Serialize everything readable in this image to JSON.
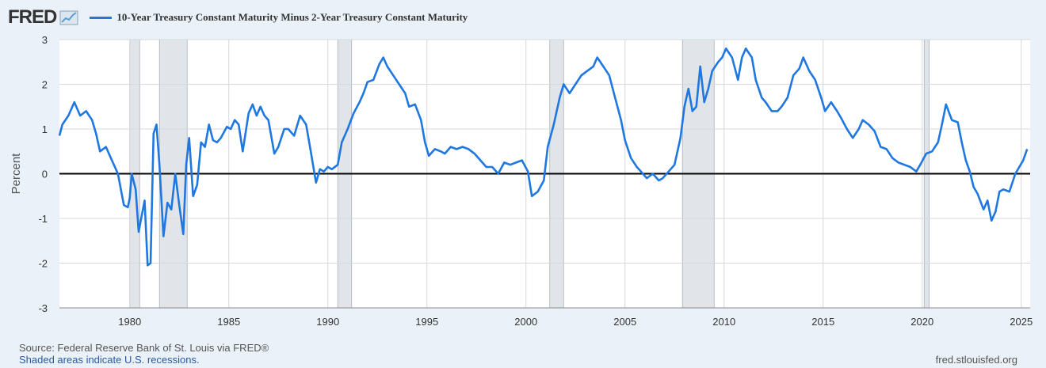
{
  "header": {
    "logo": "FRED",
    "logo_icon": "trend-chart-icon",
    "legend_label": "10-Year Treasury Constant Maturity Minus 2-Year Treasury Constant Maturity",
    "series_color": "#1f77e0"
  },
  "footer": {
    "source": "Source: Federal Reserve Bank of St. Louis via FRED®",
    "recessions_note": "Shaded areas indicate U.S. recessions.",
    "url": "fred.stlouisfed.org"
  },
  "chart_data": {
    "type": "line",
    "title": "10-Year Treasury Constant Maturity Minus 2-Year Treasury Constant Maturity",
    "xlabel": "",
    "ylabel": "Percent",
    "xlim": [
      1976.45,
      2025.45
    ],
    "ylim": [
      -3,
      3
    ],
    "xticks": [
      1980,
      1985,
      1990,
      1995,
      2000,
      2005,
      2010,
      2015,
      2020,
      2025
    ],
    "yticks": [
      -3,
      -2,
      -1,
      0,
      1,
      2,
      3
    ],
    "grid": true,
    "zero_line": true,
    "recessions": [
      [
        1980.0,
        1980.5
      ],
      [
        1981.5,
        1982.9
      ],
      [
        1990.5,
        1991.2
      ],
      [
        2001.2,
        2001.9
      ],
      [
        2007.9,
        2009.5
      ],
      [
        2020.1,
        2020.35
      ]
    ],
    "recession_color": "#e1e5ea",
    "series": [
      {
        "name": "10-Year Treasury Constant Maturity Minus 2-Year Treasury Constant Maturity",
        "color": "#1f77e0",
        "points": [
          [
            1976.45,
            0.85
          ],
          [
            1976.6,
            1.1
          ],
          [
            1976.9,
            1.3
          ],
          [
            1977.2,
            1.6
          ],
          [
            1977.5,
            1.3
          ],
          [
            1977.8,
            1.4
          ],
          [
            1978.1,
            1.2
          ],
          [
            1978.3,
            0.9
          ],
          [
            1978.5,
            0.5
          ],
          [
            1978.8,
            0.6
          ],
          [
            1979.1,
            0.3
          ],
          [
            1979.4,
            0.0
          ],
          [
            1979.7,
            -0.7
          ],
          [
            1979.9,
            -0.75
          ],
          [
            1980.0,
            -0.55
          ],
          [
            1980.1,
            0.0
          ],
          [
            1980.3,
            -0.35
          ],
          [
            1980.45,
            -1.3
          ],
          [
            1980.6,
            -0.95
          ],
          [
            1980.75,
            -0.6
          ],
          [
            1980.9,
            -2.05
          ],
          [
            1981.05,
            -2.0
          ],
          [
            1981.2,
            0.9
          ],
          [
            1981.35,
            1.1
          ],
          [
            1981.5,
            0.2
          ],
          [
            1981.7,
            -1.4
          ],
          [
            1981.9,
            -0.65
          ],
          [
            1982.1,
            -0.8
          ],
          [
            1982.3,
            0.0
          ],
          [
            1982.5,
            -0.7
          ],
          [
            1982.7,
            -1.35
          ],
          [
            1982.85,
            0.2
          ],
          [
            1983.0,
            0.8
          ],
          [
            1983.2,
            -0.5
          ],
          [
            1983.4,
            -0.25
          ],
          [
            1983.6,
            0.7
          ],
          [
            1983.8,
            0.6
          ],
          [
            1984.0,
            1.1
          ],
          [
            1984.2,
            0.75
          ],
          [
            1984.4,
            0.7
          ],
          [
            1984.6,
            0.8
          ],
          [
            1984.9,
            1.05
          ],
          [
            1985.1,
            1.0
          ],
          [
            1985.3,
            1.2
          ],
          [
            1985.5,
            1.1
          ],
          [
            1985.7,
            0.5
          ],
          [
            1986.0,
            1.35
          ],
          [
            1986.2,
            1.55
          ],
          [
            1986.4,
            1.3
          ],
          [
            1986.6,
            1.5
          ],
          [
            1986.8,
            1.3
          ],
          [
            1987.0,
            1.2
          ],
          [
            1987.3,
            0.45
          ],
          [
            1987.5,
            0.6
          ],
          [
            1987.8,
            1.0
          ],
          [
            1988.0,
            1.0
          ],
          [
            1988.3,
            0.85
          ],
          [
            1988.6,
            1.3
          ],
          [
            1988.9,
            1.1
          ],
          [
            1989.1,
            0.6
          ],
          [
            1989.4,
            -0.2
          ],
          [
            1989.6,
            0.1
          ],
          [
            1989.8,
            0.05
          ],
          [
            1990.0,
            0.15
          ],
          [
            1990.2,
            0.1
          ],
          [
            1990.5,
            0.2
          ],
          [
            1990.7,
            0.7
          ],
          [
            1991.0,
            1.0
          ],
          [
            1991.3,
            1.35
          ],
          [
            1991.6,
            1.6
          ],
          [
            1991.8,
            1.8
          ],
          [
            1992.0,
            2.05
          ],
          [
            1992.3,
            2.1
          ],
          [
            1992.6,
            2.45
          ],
          [
            1992.8,
            2.6
          ],
          [
            1993.0,
            2.4
          ],
          [
            1993.3,
            2.2
          ],
          [
            1993.6,
            2.0
          ],
          [
            1993.9,
            1.8
          ],
          [
            1994.1,
            1.5
          ],
          [
            1994.4,
            1.55
          ],
          [
            1994.7,
            1.2
          ],
          [
            1994.9,
            0.7
          ],
          [
            1995.1,
            0.4
          ],
          [
            1995.4,
            0.55
          ],
          [
            1995.7,
            0.5
          ],
          [
            1995.9,
            0.45
          ],
          [
            1996.2,
            0.6
          ],
          [
            1996.5,
            0.55
          ],
          [
            1996.8,
            0.6
          ],
          [
            1997.1,
            0.55
          ],
          [
            1997.4,
            0.45
          ],
          [
            1997.7,
            0.3
          ],
          [
            1998.0,
            0.15
          ],
          [
            1998.3,
            0.15
          ],
          [
            1998.6,
            0.0
          ],
          [
            1998.9,
            0.25
          ],
          [
            1999.2,
            0.2
          ],
          [
            1999.5,
            0.25
          ],
          [
            1999.8,
            0.3
          ],
          [
            2000.1,
            0.05
          ],
          [
            2000.3,
            -0.5
          ],
          [
            2000.6,
            -0.4
          ],
          [
            2000.9,
            -0.15
          ],
          [
            2001.1,
            0.6
          ],
          [
            2001.4,
            1.1
          ],
          [
            2001.7,
            1.7
          ],
          [
            2001.9,
            2.0
          ],
          [
            2002.2,
            1.8
          ],
          [
            2002.5,
            2.0
          ],
          [
            2002.8,
            2.2
          ],
          [
            2003.1,
            2.3
          ],
          [
            2003.4,
            2.4
          ],
          [
            2003.6,
            2.6
          ],
          [
            2003.9,
            2.4
          ],
          [
            2004.2,
            2.2
          ],
          [
            2004.5,
            1.7
          ],
          [
            2004.8,
            1.2
          ],
          [
            2005.0,
            0.75
          ],
          [
            2005.3,
            0.35
          ],
          [
            2005.6,
            0.15
          ],
          [
            2005.9,
            0.0
          ],
          [
            2006.1,
            -0.1
          ],
          [
            2006.4,
            0.0
          ],
          [
            2006.7,
            -0.15
          ],
          [
            2006.9,
            -0.1
          ],
          [
            2007.2,
            0.05
          ],
          [
            2007.5,
            0.2
          ],
          [
            2007.8,
            0.8
          ],
          [
            2008.0,
            1.5
          ],
          [
            2008.2,
            1.9
          ],
          [
            2008.4,
            1.4
          ],
          [
            2008.6,
            1.5
          ],
          [
            2008.8,
            2.4
          ],
          [
            2009.0,
            1.6
          ],
          [
            2009.2,
            1.9
          ],
          [
            2009.4,
            2.3
          ],
          [
            2009.7,
            2.5
          ],
          [
            2009.9,
            2.6
          ],
          [
            2010.1,
            2.8
          ],
          [
            2010.4,
            2.6
          ],
          [
            2010.7,
            2.1
          ],
          [
            2010.9,
            2.6
          ],
          [
            2011.1,
            2.8
          ],
          [
            2011.4,
            2.6
          ],
          [
            2011.6,
            2.1
          ],
          [
            2011.9,
            1.7
          ],
          [
            2012.1,
            1.6
          ],
          [
            2012.4,
            1.4
          ],
          [
            2012.7,
            1.4
          ],
          [
            2012.9,
            1.5
          ],
          [
            2013.2,
            1.7
          ],
          [
            2013.5,
            2.2
          ],
          [
            2013.8,
            2.35
          ],
          [
            2014.0,
            2.6
          ],
          [
            2014.3,
            2.3
          ],
          [
            2014.6,
            2.1
          ],
          [
            2014.9,
            1.7
          ],
          [
            2015.1,
            1.4
          ],
          [
            2015.4,
            1.6
          ],
          [
            2015.7,
            1.4
          ],
          [
            2015.9,
            1.25
          ],
          [
            2016.2,
            1.0
          ],
          [
            2016.5,
            0.8
          ],
          [
            2016.8,
            1.0
          ],
          [
            2017.0,
            1.2
          ],
          [
            2017.3,
            1.1
          ],
          [
            2017.6,
            0.95
          ],
          [
            2017.9,
            0.6
          ],
          [
            2018.2,
            0.55
          ],
          [
            2018.5,
            0.35
          ],
          [
            2018.8,
            0.25
          ],
          [
            2019.1,
            0.2
          ],
          [
            2019.4,
            0.15
          ],
          [
            2019.7,
            0.05
          ],
          [
            2019.9,
            0.2
          ],
          [
            2020.2,
            0.45
          ],
          [
            2020.5,
            0.5
          ],
          [
            2020.8,
            0.7
          ],
          [
            2021.0,
            1.1
          ],
          [
            2021.2,
            1.55
          ],
          [
            2021.5,
            1.2
          ],
          [
            2021.8,
            1.15
          ],
          [
            2022.0,
            0.7
          ],
          [
            2022.2,
            0.3
          ],
          [
            2022.4,
            0.05
          ],
          [
            2022.6,
            -0.3
          ],
          [
            2022.8,
            -0.45
          ],
          [
            2023.1,
            -0.8
          ],
          [
            2023.3,
            -0.6
          ],
          [
            2023.5,
            -1.05
          ],
          [
            2023.7,
            -0.85
          ],
          [
            2023.9,
            -0.4
          ],
          [
            2024.1,
            -0.35
          ],
          [
            2024.4,
            -0.4
          ],
          [
            2024.7,
            0.0
          ],
          [
            2024.9,
            0.15
          ],
          [
            2025.1,
            0.3
          ],
          [
            2025.3,
            0.55
          ]
        ]
      }
    ]
  }
}
